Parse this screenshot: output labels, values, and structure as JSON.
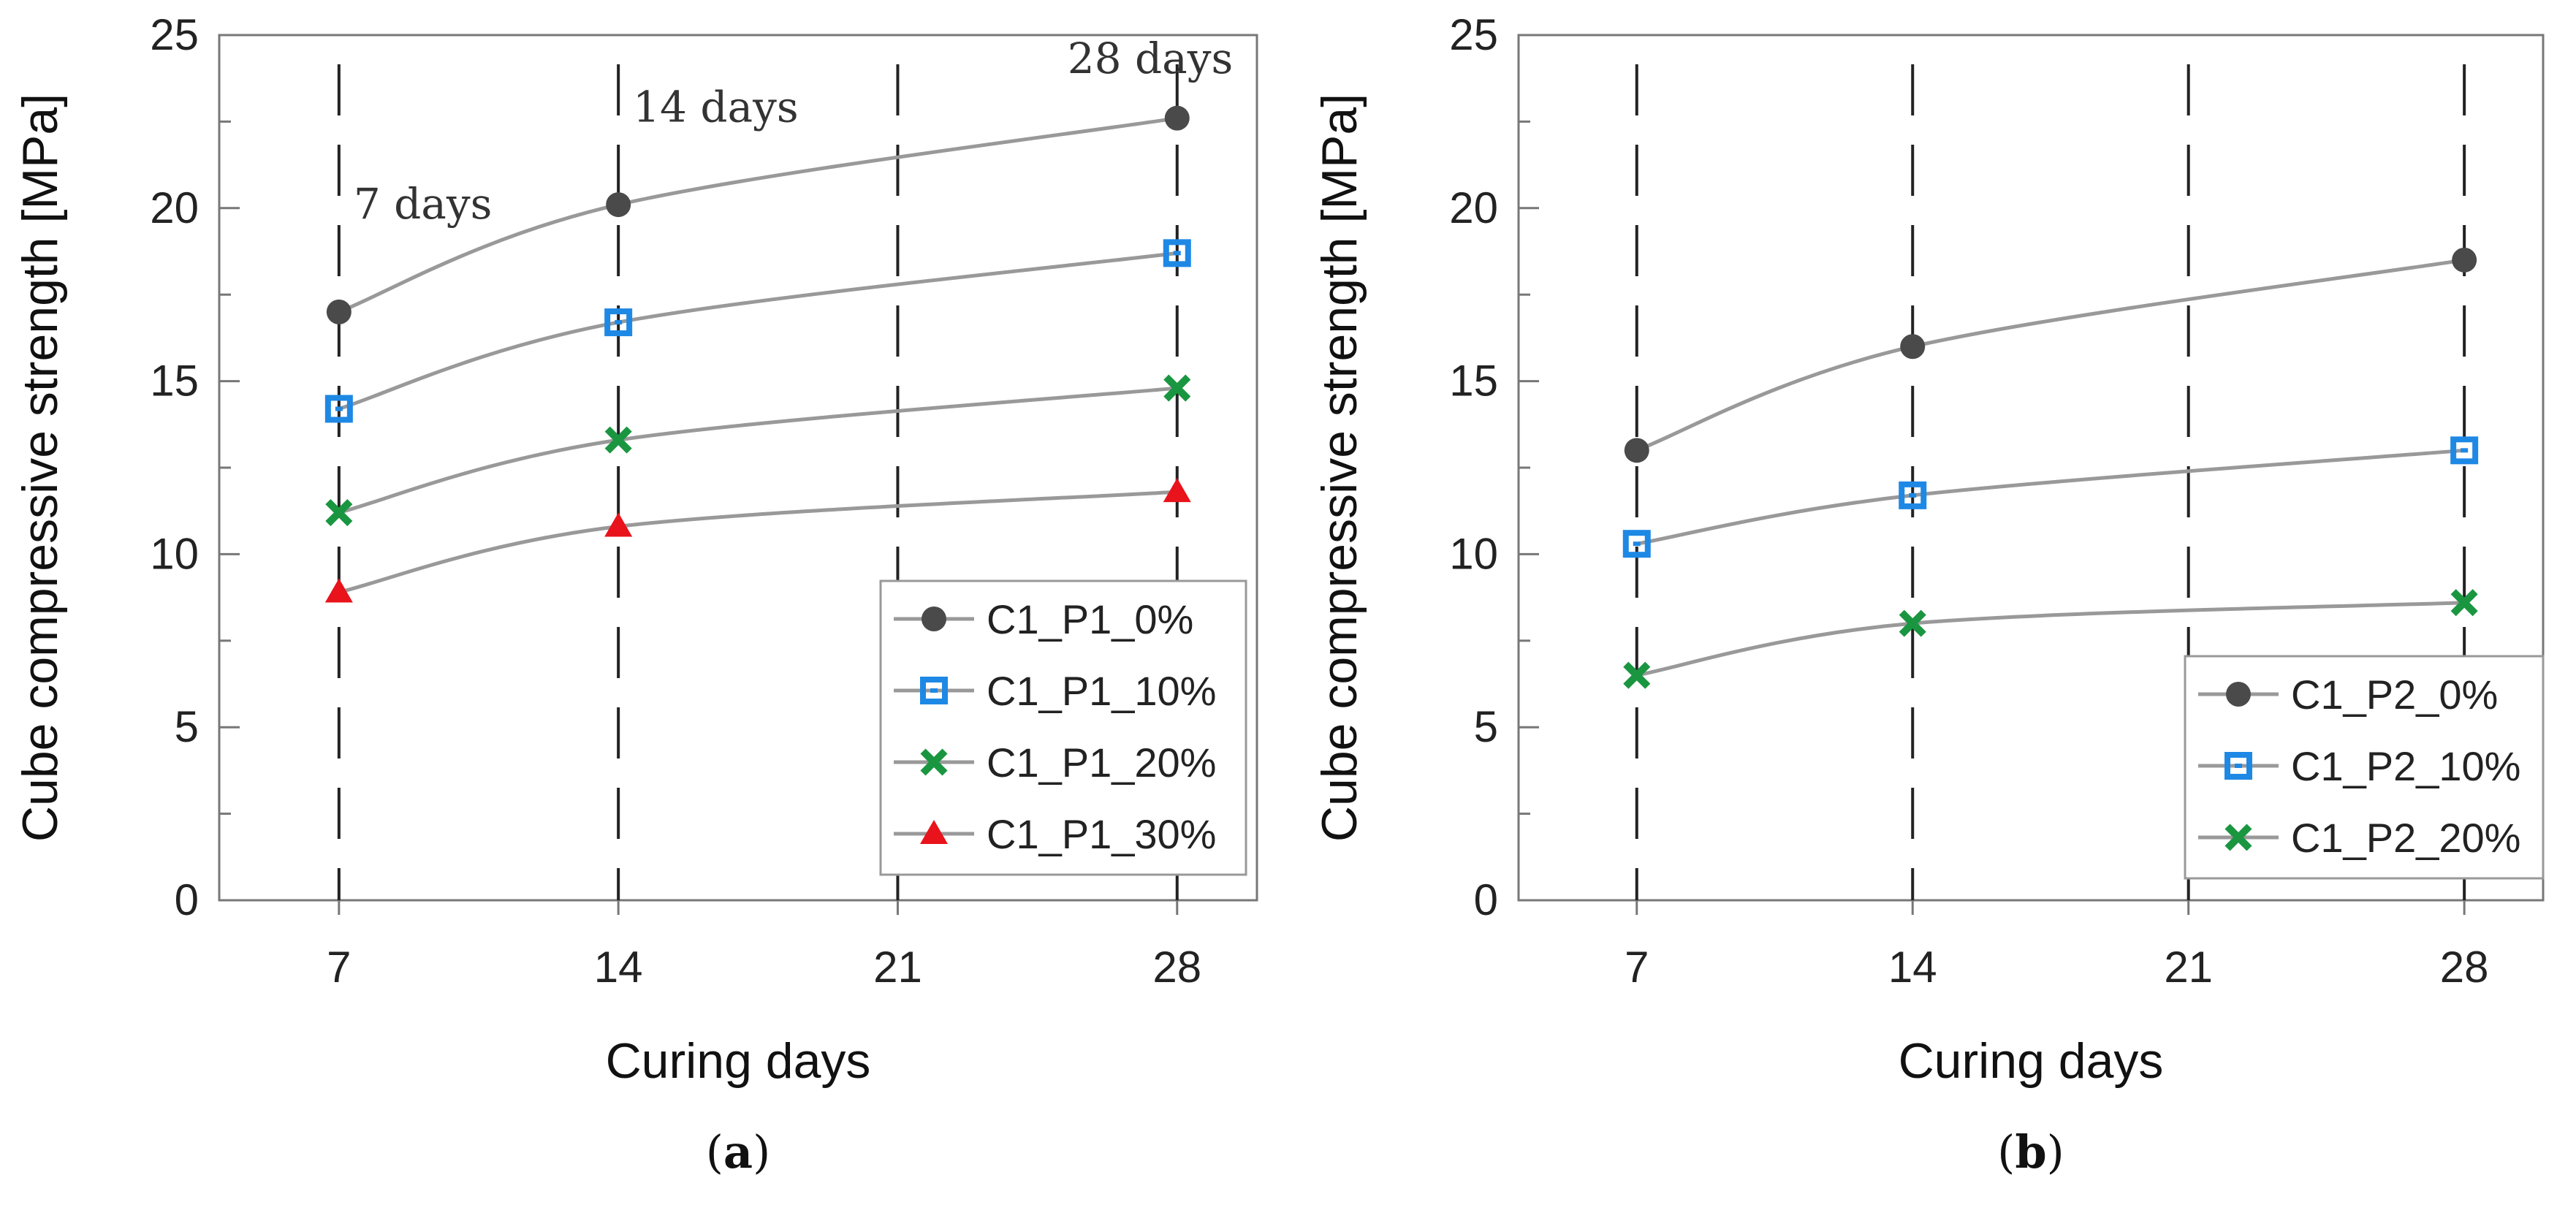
{
  "chart_data": [
    {
      "type": "line",
      "panel": "a",
      "caption_open": "(",
      "caption_letter": "a",
      "caption_close": ")",
      "title": "",
      "xlabel": "Curing days",
      "ylabel": "Cube compressive strength [MPa]",
      "x": [
        7,
        14,
        21,
        28
      ],
      "xticks": [
        "7",
        "14",
        "21",
        "28"
      ],
      "xlim": [
        4,
        30
      ],
      "yticks": [
        "0",
        "5",
        "10",
        "15",
        "20",
        "25"
      ],
      "ylim": [
        0,
        25
      ],
      "ystep": 5,
      "grid": "vertical dashed",
      "legend_position": "bottom-right",
      "annotations": [
        {
          "text": "7 days",
          "x": 7,
          "y": 19.7
        },
        {
          "text": "14 days",
          "x": 14,
          "y": 22.5
        },
        {
          "text": "28 days",
          "x": 28,
          "y": 23.9
        }
      ],
      "series": [
        {
          "name": "C1_P1_0%",
          "marker": "circle",
          "color": "#4a4a4a",
          "x": [
            7,
            14,
            28
          ],
          "values": [
            17.0,
            20.1,
            22.6
          ]
        },
        {
          "name": "C1_P1_10%",
          "marker": "square",
          "color": "#1e88e5",
          "x": [
            7,
            14,
            28
          ],
          "values": [
            14.2,
            16.7,
            18.7
          ]
        },
        {
          "name": "C1_P1_20%",
          "marker": "x",
          "color": "#1a9641",
          "x": [
            7,
            14,
            28
          ],
          "values": [
            11.2,
            13.3,
            14.8
          ]
        },
        {
          "name": "C1_P1_30%",
          "marker": "triangle",
          "color": "#e8131b",
          "x": [
            7,
            14,
            28
          ],
          "values": [
            8.9,
            10.8,
            11.8
          ]
        }
      ]
    },
    {
      "type": "line",
      "panel": "b",
      "caption_open": "(",
      "caption_letter": "b",
      "caption_close": ")",
      "title": "",
      "xlabel": "Curing days",
      "ylabel": "Cube compressive strength [MPa]",
      "x": [
        7,
        14,
        21,
        28
      ],
      "xticks": [
        "7",
        "14",
        "21",
        "28"
      ],
      "xlim": [
        4,
        30
      ],
      "yticks": [
        "0",
        "5",
        "10",
        "15",
        "20",
        "25"
      ],
      "ylim": [
        0,
        25
      ],
      "ystep": 5,
      "grid": "vertical dashed",
      "legend_position": "bottom-right",
      "annotations": [],
      "series": [
        {
          "name": "C1_P2_0%",
          "marker": "circle",
          "color": "#4a4a4a",
          "x": [
            7,
            14,
            28
          ],
          "values": [
            13.0,
            16.0,
            18.5
          ]
        },
        {
          "name": "C1_P2_10%",
          "marker": "square",
          "color": "#1e88e5",
          "x": [
            7,
            14,
            28
          ],
          "values": [
            10.3,
            11.7,
            13.0
          ]
        },
        {
          "name": "C1_P2_20%",
          "marker": "x",
          "color": "#1a9641",
          "x": [
            7,
            14,
            28
          ],
          "values": [
            6.5,
            8.0,
            8.6
          ]
        }
      ]
    }
  ]
}
